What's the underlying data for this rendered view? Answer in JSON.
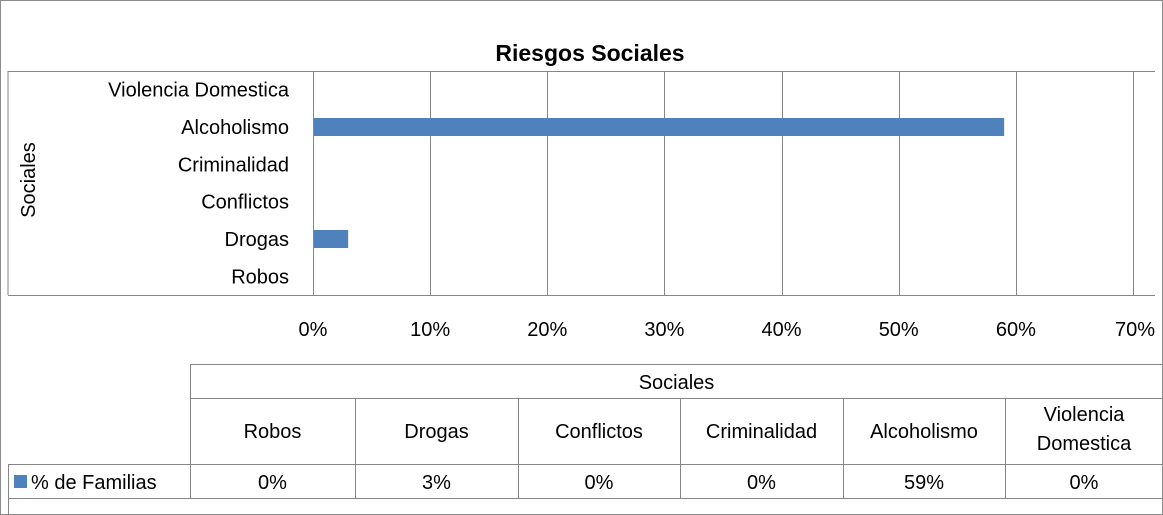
{
  "chart_data": {
    "type": "bar",
    "orientation": "horizontal",
    "title": "Riesgos Sociales",
    "ylabel": "Sociales",
    "xlabel": "",
    "categories": [
      "Robos",
      "Drogas",
      "Conflictos",
      "Criminalidad",
      "Alcoholismo",
      "Violencia Domestica"
    ],
    "series": [
      {
        "name": "% de Familias",
        "values": [
          0,
          3,
          0,
          0,
          59,
          0
        ],
        "color": "#4F81BD"
      }
    ],
    "xlim": [
      0,
      70
    ],
    "x_ticks": [
      "0%",
      "10%",
      "20%",
      "30%",
      "40%",
      "50%",
      "60%",
      "70%"
    ],
    "grid": true,
    "legend": "data-table",
    "data_table": {
      "group_header": "Sociales",
      "columns": [
        "Robos",
        "Drogas",
        "Conflictos",
        "Criminalidad",
        "Alcoholismo",
        "Violencia Domestica"
      ],
      "row_label": "% de Familias",
      "values": [
        "0%",
        "3%",
        "0%",
        "0%",
        "59%",
        "0%"
      ]
    }
  }
}
